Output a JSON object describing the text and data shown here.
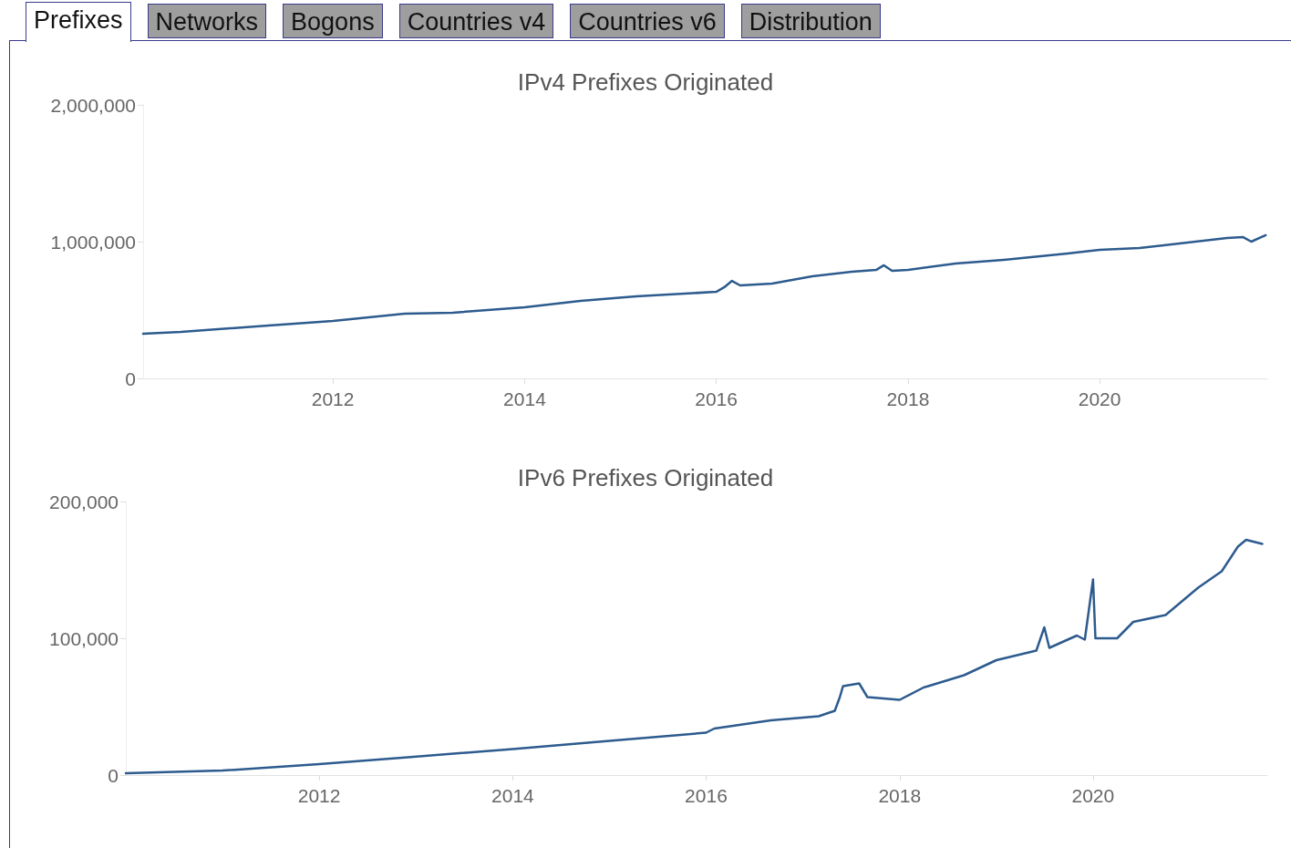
{
  "chart_data": [
    {
      "type": "line",
      "title": "IPv4 Prefixes Originated",
      "annotations": [
        "Prefixes",
        "Networks",
        "Bogons",
        "Countries v4",
        "Countries v6",
        "Distribution"
      ],
      "x": [
        "2010-01-08",
        "2010-06",
        "2011-05",
        "2012-01",
        "2012-10",
        "2013-04",
        "2014-01",
        "2014-08",
        "2015-03",
        "2016-01",
        "2016-02",
        "2016-03",
        "2016-04",
        "2016-08",
        "2017-01",
        "2017-06",
        "2017-09",
        "2017-10",
        "2017-11",
        "2018-01",
        "2018-07",
        "2019-01",
        "2019-09",
        "2020-01",
        "2020-06",
        "2020-11",
        "2021-05",
        "2021-07",
        "2021-08",
        "2021-09-25"
      ],
      "series": [
        {
          "color": "#2d5b8e",
          "values": [
            327000,
            340000,
            387000,
            420000,
            473000,
            480000,
            520000,
            567000,
            600000,
            633000,
            667000,
            713000,
            680000,
            693000,
            747000,
            780000,
            793000,
            827000,
            787000,
            793000,
            840000,
            867000,
            913000,
            940000,
            953000,
            987000,
            1027000,
            1033000,
            1000000,
            1047000
          ]
        }
      ],
      "xlim": [
        "2010-01-08",
        "2021-10-01"
      ],
      "xticks": [
        "2012",
        "2014",
        "2016",
        "2018",
        "2020"
      ],
      "ylim": [
        0,
        2000000
      ],
      "yticks": [
        {
          "value": 0,
          "label": "0"
        },
        {
          "value": 1000000,
          "label": "1,000,000"
        },
        {
          "value": 2000000,
          "label": "2,000,000"
        }
      ],
      "grid": false,
      "marker": "none",
      "line_style": "solid"
    },
    {
      "type": "line",
      "title": "IPv6 Prefixes Originated",
      "x": [
        "2010-01",
        "2011-01",
        "2012-01",
        "2012-12",
        "2014-01",
        "2015-01",
        "2016-01",
        "2016-02",
        "2016-09",
        "2017-03",
        "2017-05",
        "2017-05-20",
        "2017-06",
        "2017-08",
        "2017-09",
        "2018-01",
        "2018-04",
        "2018-09",
        "2019-01",
        "2019-06",
        "2019-07",
        "2019-07-20",
        "2019-11",
        "2019-12",
        "2020-01",
        "2020-01-10",
        "2020-04",
        "2020-06",
        "2020-10",
        "2021-02",
        "2021-05",
        "2021-07",
        "2021-08",
        "2021-10"
      ],
      "series": [
        {
          "color": "#2d5b8e",
          "values": [
            1300,
            3300,
            8000,
            13000,
            19000,
            25000,
            31000,
            34000,
            40000,
            43000,
            47000,
            57000,
            65000,
            67000,
            57000,
            55000,
            64000,
            73000,
            84000,
            91000,
            108000,
            93000,
            102000,
            99000,
            143000,
            100000,
            100000,
            112000,
            117000,
            137000,
            149000,
            167000,
            172000,
            169000
          ]
        }
      ],
      "xlim": [
        "2010-01-01",
        "2021-10-20"
      ],
      "xticks": [
        "2012",
        "2014",
        "2016",
        "2018",
        "2020"
      ],
      "ylim": [
        0,
        200000
      ],
      "yticks": [
        {
          "value": 0,
          "label": "0"
        },
        {
          "value": 100000,
          "label": "100,000"
        },
        {
          "value": 200000,
          "label": "200,000"
        }
      ],
      "grid": false,
      "marker": "none",
      "line_style": "solid"
    }
  ]
}
